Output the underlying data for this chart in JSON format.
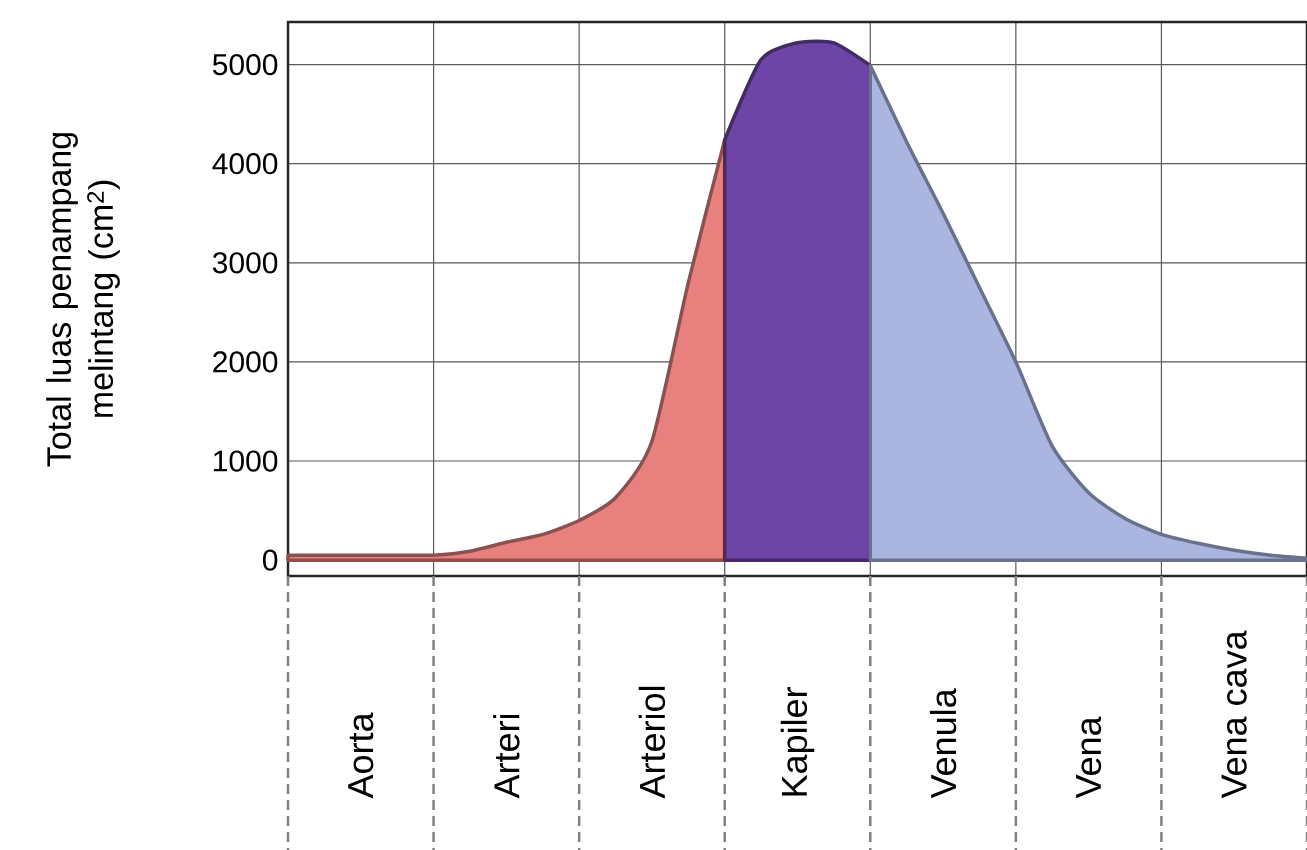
{
  "chart_data": {
    "type": "area",
    "ylabel": "Total luas penampang melintang (cm$^{2}$)",
    "categories": [
      null,
      null,
      "Aorta",
      null,
      null,
      null,
      "Arteri",
      null,
      null,
      null,
      "Arteriol",
      null,
      null,
      null,
      "Kapiler",
      null,
      null,
      null,
      "Venula",
      null,
      null,
      null,
      "Vena",
      null,
      null,
      null,
      "Vena cava",
      null,
      null
    ],
    "series": [
      {
        "color": "#e8807e",
        "values": [
          50,
          50,
          50,
          50,
          50,
          90,
          180,
          260,
          400,
          630,
          1200,
          2800,
          4240,
          null,
          null,
          null,
          null,
          null,
          null,
          null,
          null,
          null,
          null,
          null,
          null,
          null,
          null,
          null,
          null
        ]
      },
      {
        "color": "#6c45a6",
        "values": [
          null,
          null,
          null,
          null,
          null,
          null,
          null,
          null,
          null,
          null,
          null,
          null,
          4240,
          5050,
          5220,
          5220,
          4990,
          null,
          null,
          null,
          null,
          null,
          null,
          null,
          null,
          null,
          null,
          null,
          null
        ]
      },
      {
        "color": "#aab6e0",
        "values": [
          null,
          null,
          null,
          null,
          null,
          null,
          null,
          null,
          null,
          null,
          null,
          null,
          null,
          null,
          null,
          null,
          4990,
          4220,
          3500,
          2750,
          2000,
          1150,
          680,
          420,
          260,
          170,
          100,
          50,
          20
        ]
      }
    ],
    "ylim": [
      -160,
      5430
    ],
    "yticks": [
      0,
      1000,
      2000,
      3000,
      4000,
      5000
    ],
    "grid": true
  }
}
